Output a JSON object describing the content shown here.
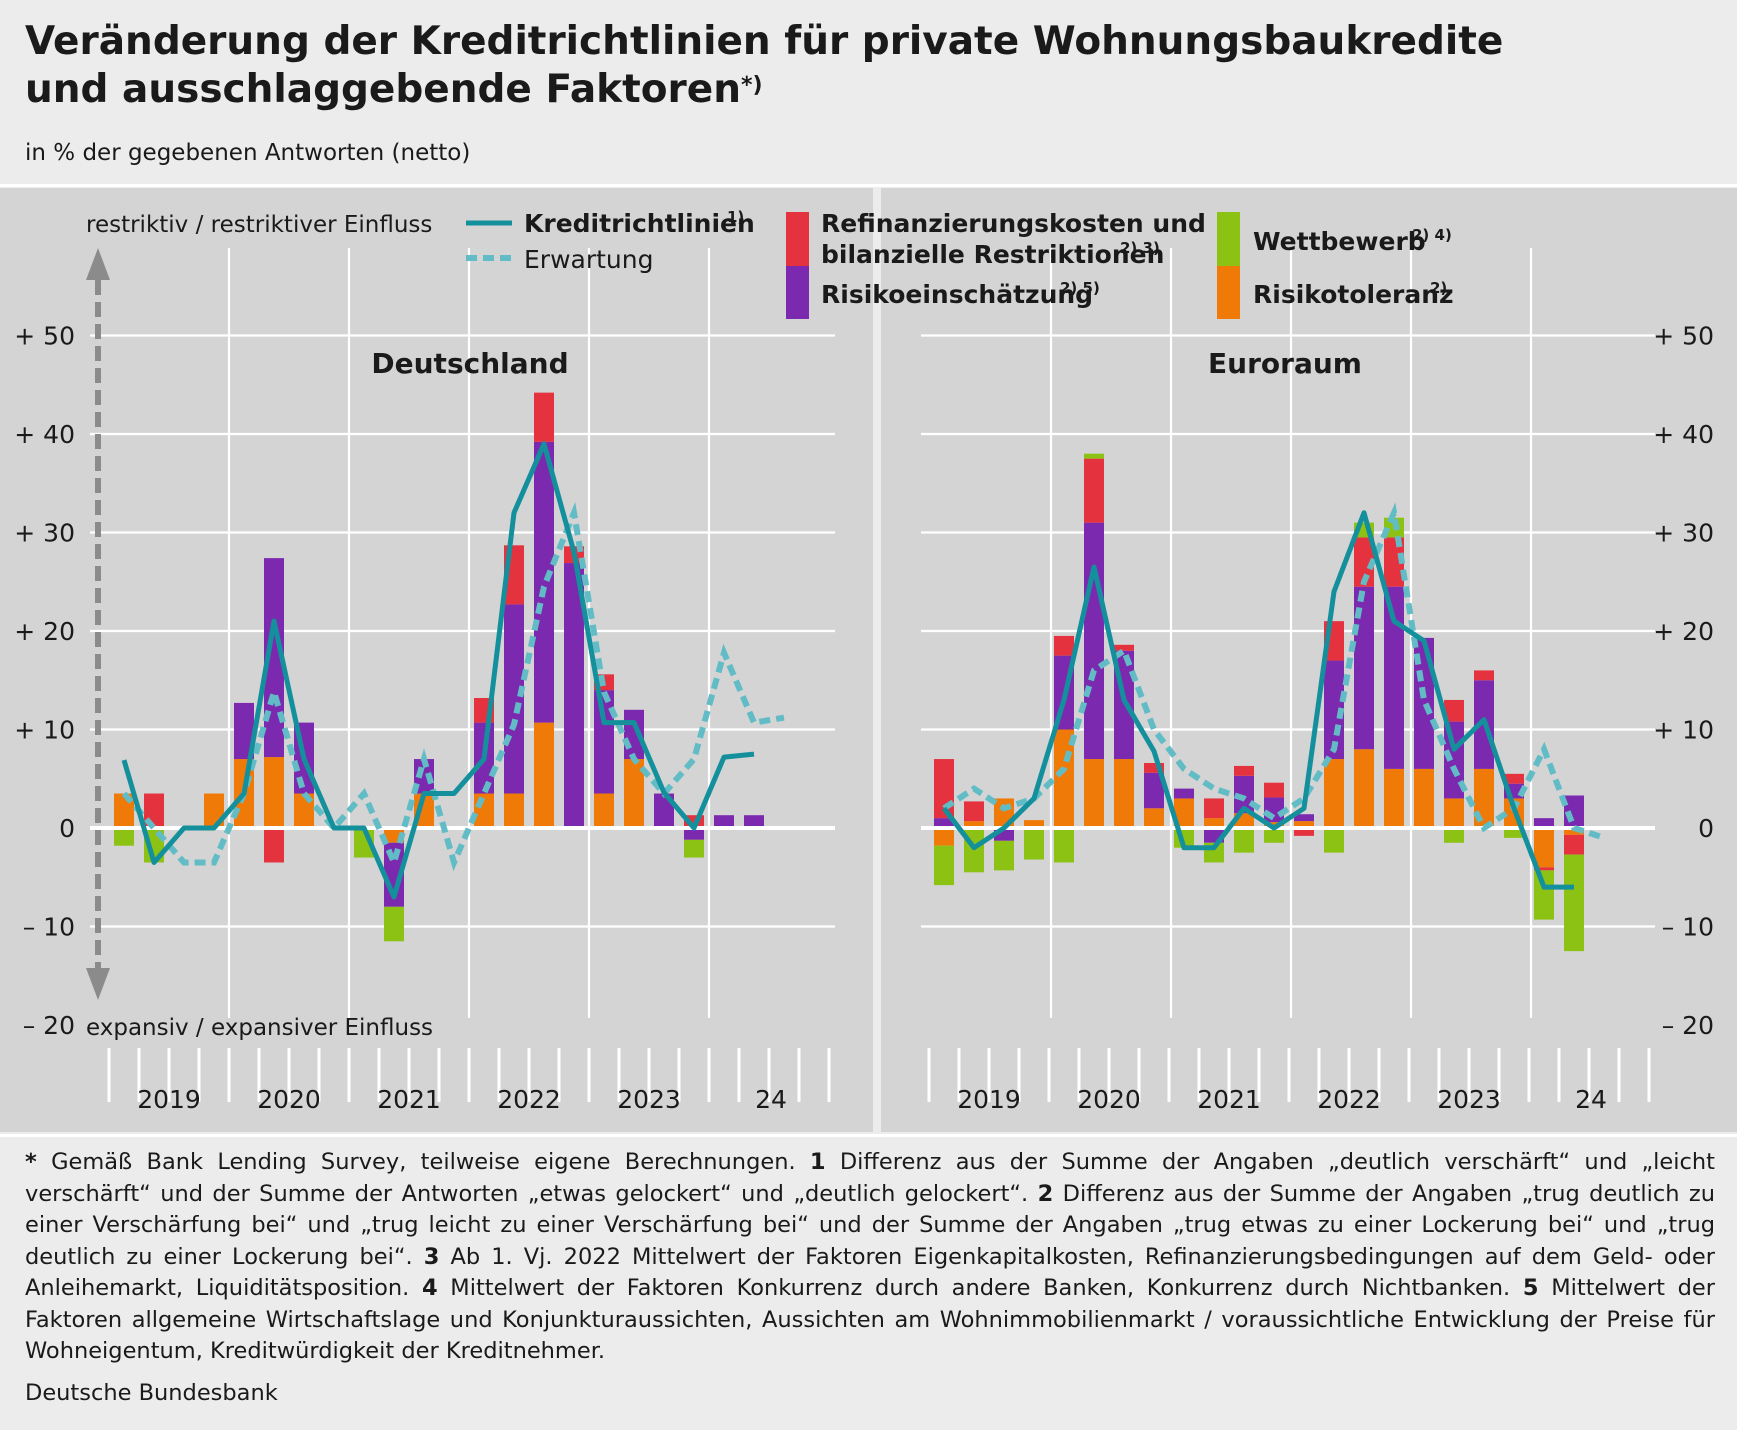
{
  "title_line1": "Veränderung der Kreditrichtlinien für private Wohnungsbaukredite",
  "title_line2": "und ausschlaggebende Faktoren",
  "title_mark": "*)",
  "subtitle": "in % der gegebenen Antworten (netto)",
  "colors": {
    "plot_bg": "#d4d4d4",
    "line": "#14909d",
    "expectation": "#62bcc6",
    "refinancing": "#e4333f",
    "risk_assessment": "#7b2ab0",
    "competition": "#8cc214",
    "risk_tolerance": "#f07a08",
    "arrow": "#8b8b8b"
  },
  "chart_data": {
    "type": "bar",
    "subtype": "stacked bars with line overlays",
    "ylim": [
      -20,
      50
    ],
    "yticks": [
      "+ 50",
      "+ 40",
      "+ 30",
      "+ 20",
      "+ 10",
      "0",
      "– 10",
      "– 20"
    ],
    "ytick_values": [
      50,
      40,
      30,
      20,
      10,
      0,
      -10,
      -20
    ],
    "axis_top_label": "restriktiv / restriktiver Einfluss",
    "axis_bottom_label": "expansiv / expansiver Einfluss",
    "x_year_labels": [
      "2019",
      "2020",
      "2021",
      "2022",
      "2023",
      "24"
    ],
    "legend": {
      "kreditrichtlinien": "Kreditrichtlinien",
      "kreditrichtlinien_note": "1)",
      "erwartung": "Erwartung",
      "refinanzierung_line1": "Refinanzierungskosten und",
      "refinanzierung_line2": "bilanzielle Restriktionen",
      "refinanzierung_note": "2) 3)",
      "risikoeinschaetzung": "Risikoeinschätzung",
      "risikoeinschaetzung_note": "2) 5)",
      "wettbewerb": "Wettbewerb",
      "wettbewerb_note": "2) 4)",
      "risikotoleranz": "Risikotoleranz",
      "risikotoleranz_note": "2)"
    },
    "panels": [
      {
        "name": "Deutschland",
        "quarters": [
          "2019Q1",
          "2019Q2",
          "2019Q3",
          "2019Q4",
          "2020Q1",
          "2020Q2",
          "2020Q3",
          "2020Q4",
          "2021Q1",
          "2021Q2",
          "2021Q3",
          "2021Q4",
          "2022Q1",
          "2022Q2",
          "2022Q3",
          "2022Q4",
          "2023Q1",
          "2023Q2",
          "2023Q3",
          "2023Q4",
          "2024Q1",
          "2024Q2"
        ],
        "risikotoleranz": [
          3.5,
          0,
          0,
          3.5,
          7,
          7.2,
          3.5,
          0,
          0,
          -1.5,
          3.5,
          0,
          3.5,
          3.5,
          10.7,
          0,
          3.5,
          7,
          0,
          0,
          0,
          0
        ],
        "risikoeinschaetzung": [
          0,
          0,
          0,
          0,
          5.7,
          20.2,
          7.2,
          0,
          0,
          -6.5,
          3.5,
          0,
          7.2,
          19.2,
          28.5,
          26.9,
          10.5,
          5,
          3.5,
          -1.2,
          1.3,
          1.3
        ],
        "refinanzierung": [
          0,
          3.5,
          0,
          0,
          0,
          -3.5,
          0,
          0,
          0,
          0,
          0,
          0,
          2.5,
          6,
          5,
          1.7,
          1.6,
          0,
          0,
          1.3,
          0,
          0
        ],
        "wettbewerb": [
          -1.8,
          -3.5,
          0,
          0,
          0,
          0,
          0,
          0,
          -3,
          -3.5,
          0,
          0,
          0,
          0,
          0,
          0,
          0,
          0,
          0,
          -1.8,
          0,
          0
        ],
        "kreditrichtlinien": [
          6.9,
          -3.5,
          0,
          0,
          3.5,
          21,
          7,
          0,
          0,
          -7,
          3.5,
          3.5,
          7,
          32,
          39,
          28,
          10.7,
          10.7,
          3.6,
          0,
          7.2,
          7.5
        ],
        "erwartung_quarters": [
          "2019Q1",
          "2019Q2",
          "2019Q3",
          "2019Q4",
          "2020Q1",
          "2020Q2",
          "2020Q3",
          "2020Q4",
          "2021Q1",
          "2021Q2",
          "2021Q3",
          "2021Q4",
          "2022Q1",
          "2022Q2",
          "2022Q3",
          "2022Q4",
          "2023Q1",
          "2023Q2",
          "2023Q3",
          "2023Q4",
          "2024Q1",
          "2024Q2",
          "2024Q3"
        ],
        "erwartung": [
          3.5,
          0,
          -3.5,
          -3.5,
          3.5,
          13.8,
          3.5,
          0,
          3.5,
          -3.5,
          7,
          -3.5,
          3.5,
          10.5,
          24.5,
          32,
          13.8,
          7,
          3.5,
          7,
          17.8,
          10.7,
          11.2
        ]
      },
      {
        "name": "Euroraum",
        "quarters": [
          "2019Q1",
          "2019Q2",
          "2019Q3",
          "2019Q4",
          "2020Q1",
          "2020Q2",
          "2020Q3",
          "2020Q4",
          "2021Q1",
          "2021Q2",
          "2021Q3",
          "2021Q4",
          "2022Q1",
          "2022Q2",
          "2022Q3",
          "2022Q4",
          "2023Q1",
          "2023Q2",
          "2023Q3",
          "2023Q4",
          "2024Q1",
          "2024Q2"
        ],
        "risikotoleranz": [
          -1.8,
          0.7,
          3,
          0.8,
          10,
          7,
          7,
          2,
          3,
          1,
          1.5,
          0.6,
          0.7,
          7,
          8,
          6,
          6,
          3,
          6,
          3,
          -4,
          -0.7
        ],
        "risikoeinschaetzung": [
          1,
          0,
          -1.3,
          0,
          7.5,
          24,
          11,
          3.6,
          1,
          -1.5,
          3.8,
          2.5,
          0.7,
          10,
          16.5,
          18.5,
          13.3,
          7.8,
          9,
          1.5,
          1,
          3.3
        ],
        "refinanzierung": [
          6,
          2,
          0,
          0,
          2,
          6.5,
          0.6,
          1,
          0,
          2,
          1,
          1.5,
          -0.8,
          4,
          5,
          5,
          0,
          2.2,
          1,
          1,
          -0.3,
          -2
        ],
        "wettbewerb": [
          -4,
          -4.5,
          -3,
          -3.2,
          -3.5,
          0.5,
          0,
          0,
          -2,
          -2,
          -2.5,
          -1.5,
          0,
          -2.5,
          1.5,
          2,
          -0.2,
          -1.5,
          0,
          -1,
          -5,
          -9.8
        ],
        "kreditrichtlinien": [
          2,
          -2,
          0,
          3,
          13,
          26.5,
          13,
          7.8,
          -2,
          -2,
          2,
          0,
          2,
          24,
          32,
          21,
          19,
          8,
          11,
          2,
          -6,
          -6
        ],
        "erwartung_quarters": [
          "2019Q1",
          "2019Q2",
          "2019Q3",
          "2019Q4",
          "2020Q1",
          "2020Q2",
          "2020Q3",
          "2020Q4",
          "2021Q1",
          "2021Q2",
          "2021Q3",
          "2021Q4",
          "2022Q1",
          "2022Q2",
          "2022Q3",
          "2022Q4",
          "2023Q1",
          "2023Q2",
          "2023Q3",
          "2023Q4",
          "2024Q1",
          "2024Q2",
          "2024Q3"
        ],
        "erwartung": [
          2,
          4,
          2,
          3,
          6,
          16,
          18,
          10,
          6,
          4,
          3,
          1,
          3,
          8,
          25,
          32,
          13,
          6,
          0,
          2,
          8,
          0,
          -1
        ]
      }
    ]
  },
  "footnotes": {
    "star": "*",
    "star_text": " Gemäß Bank Lending Survey, teilweise eigene Berechnungen. ",
    "n1": "1",
    "t1": " Differenz aus der Summe der Angaben „deutlich verschärft“ und „leicht verschärft“ und der Summe der Antworten „etwas gelockert“ und „deutlich gelockert“. ",
    "n2": "2",
    "t2": " Differenz aus der Summe der Angaben „trug deutlich zu einer Verschärfung bei“ und „trug leicht zu einer Verschärfung bei“ und der Summe der Angaben „trug etwas zu einer Lockerung bei“ und „trug deutlich zu einer Lockerung bei“. ",
    "n3": "3",
    "t3": " Ab 1. Vj. 2022 Mittelwert der Faktoren Eigenkapitalkosten, Refinanzierungsbedingungen auf dem Geld- oder Anleihemarkt, Liquiditätsposition. ",
    "n4": "4",
    "t4": " Mittelwert der Faktoren Konkurrenz durch andere Banken, Konkurrenz durch Nichtbanken. ",
    "n5": "5",
    "t5": " Mittelwert der Faktoren allgemeine Wirtschaftslage und Konjunkturaussichten, Aussichten am Wohnimmobilienmarkt / voraussichtliche Entwicklung der Preise für Wohneigentum, Kreditwürdigkeit der Kreditnehmer."
  },
  "source": "Deutsche Bundesbank"
}
